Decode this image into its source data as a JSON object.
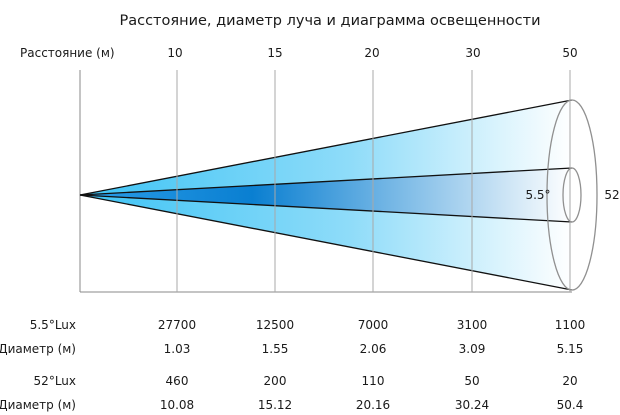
{
  "title": "Расстояние, диаметр луча и диаграмма освещенности",
  "distance_label": "Расстояние (м)",
  "distances": [
    "10",
    "15",
    "20",
    "30",
    "50"
  ],
  "narrow_beam_angle": "5.5°",
  "wide_beam_angle": "52",
  "table": {
    "rows": [
      {
        "label": "5.5°Lux",
        "values": [
          "27700",
          "12500",
          "7000",
          "3100",
          "1100"
        ]
      },
      {
        "label": "Диаметр (м)",
        "values": [
          "1.03",
          "1.55",
          "2.06",
          "3.09",
          "5.15"
        ]
      },
      {
        "label": "52°Lux",
        "values": [
          "460",
          "200",
          "110",
          "50",
          "20"
        ]
      },
      {
        "label": "Диаметр (м)",
        "values": [
          "10.08",
          "15.12",
          "20.16",
          "30.24",
          "50.4"
        ]
      }
    ]
  },
  "colors": {
    "beam_light": "#3dc3f5",
    "beam_dark": "#0a7fd1",
    "grid": "#a8a8a8",
    "frame": "#8a8a8a",
    "outline": "#909090"
  }
}
